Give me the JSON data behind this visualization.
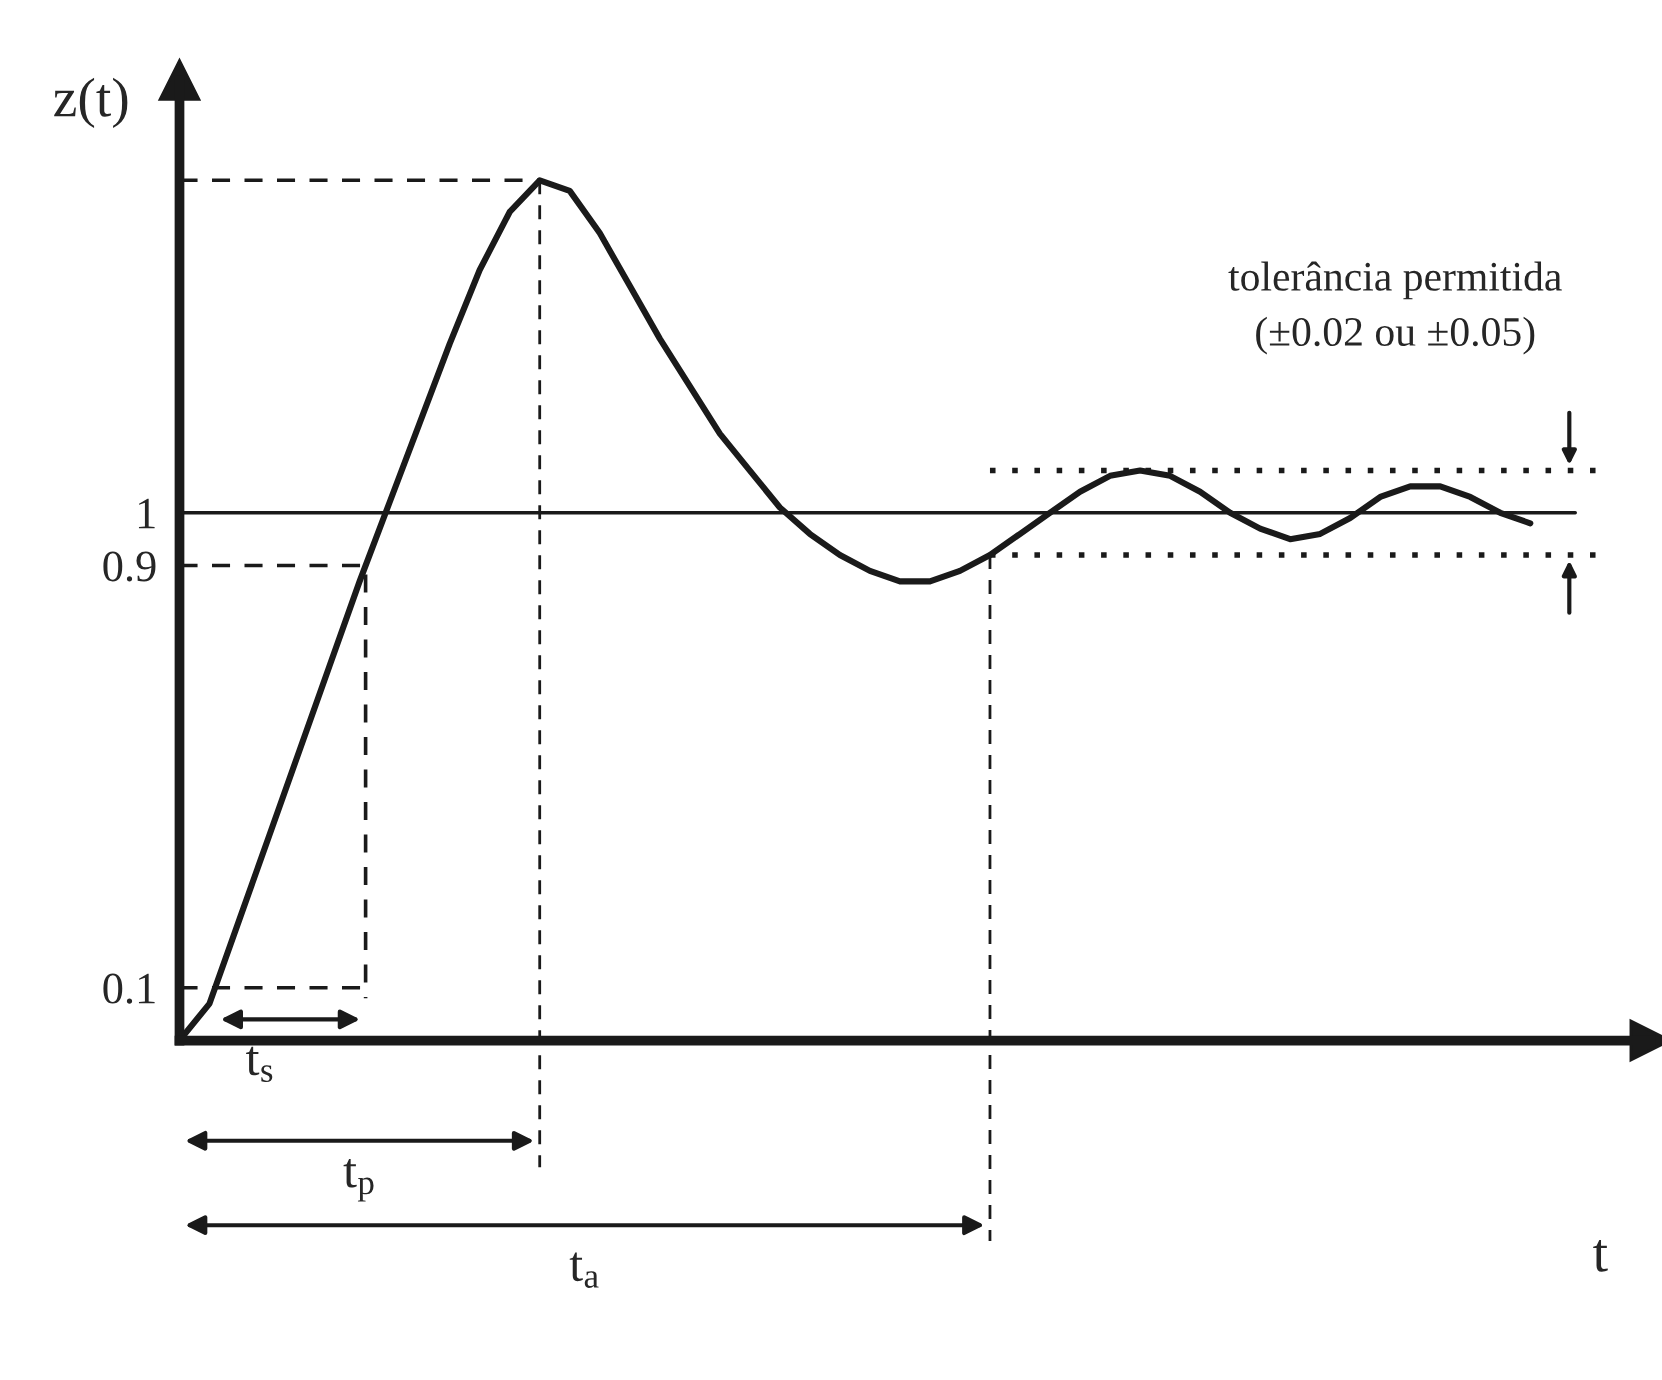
{
  "chart_data": {
    "type": "line",
    "xlabel": "t",
    "ylabel": "z(t)",
    "categories": [
      null,
      null,
      null,
      null,
      null,
      null,
      null,
      null,
      null,
      null,
      null,
      null,
      null,
      null,
      null,
      null,
      null,
      null,
      null,
      null,
      null,
      null,
      null,
      null,
      null,
      null,
      null,
      null,
      null,
      null,
      null,
      null,
      null,
      null,
      null,
      null,
      null,
      null,
      null,
      null,
      null,
      null,
      null,
      null,
      null,
      null
    ],
    "series": [
      {
        "color": "#1a1a1a",
        "values": [
          0,
          0.07,
          0.23,
          0.39,
          0.55,
          0.71,
          0.87,
          1.02,
          1.17,
          1.32,
          1.46,
          1.57,
          1.63,
          1.61,
          1.53,
          1.43,
          1.33,
          1.24,
          1.15,
          1.08,
          1.01,
          0.96,
          0.92,
          0.89,
          0.87,
          0.87,
          0.89,
          0.92,
          0.96,
          1.0,
          1.04,
          1.07,
          1.08,
          1.07,
          1.04,
          1.0,
          0.97,
          0.95,
          0.96,
          0.99,
          1.03,
          1.05,
          1.05,
          1.03,
          1.0,
          0.98
        ]
      }
    ],
    "ylim": [
      0,
      1.82
    ],
    "yticks": [
      0.1,
      0.9,
      1
    ],
    "tick_labels": "y",
    "ref_lines": [
      {
        "axis": "y",
        "value": 1,
        "line_style": "solid"
      },
      {
        "axis": "y",
        "value": 0.9,
        "line_style": "dashed"
      },
      {
        "axis": "y",
        "value": 0.1,
        "line_style": "dashed"
      },
      {
        "axis": "y",
        "value": 1.63,
        "line_style": "dashed"
      },
      {
        "axis": "y",
        "value": 0.92,
        "line_style": "dotted"
      },
      {
        "axis": "y",
        "value": 1.08,
        "line_style": "dotted"
      }
    ],
    "annotations": [
      "t$_{s}$",
      "t$_{p}$",
      "t$_{a}$",
      "tolerância permitida\n(±0.02 ou ±0.05)"
    ],
    "legend": false,
    "grid": false,
    "marker": "none",
    "line_style": "solid"
  }
}
